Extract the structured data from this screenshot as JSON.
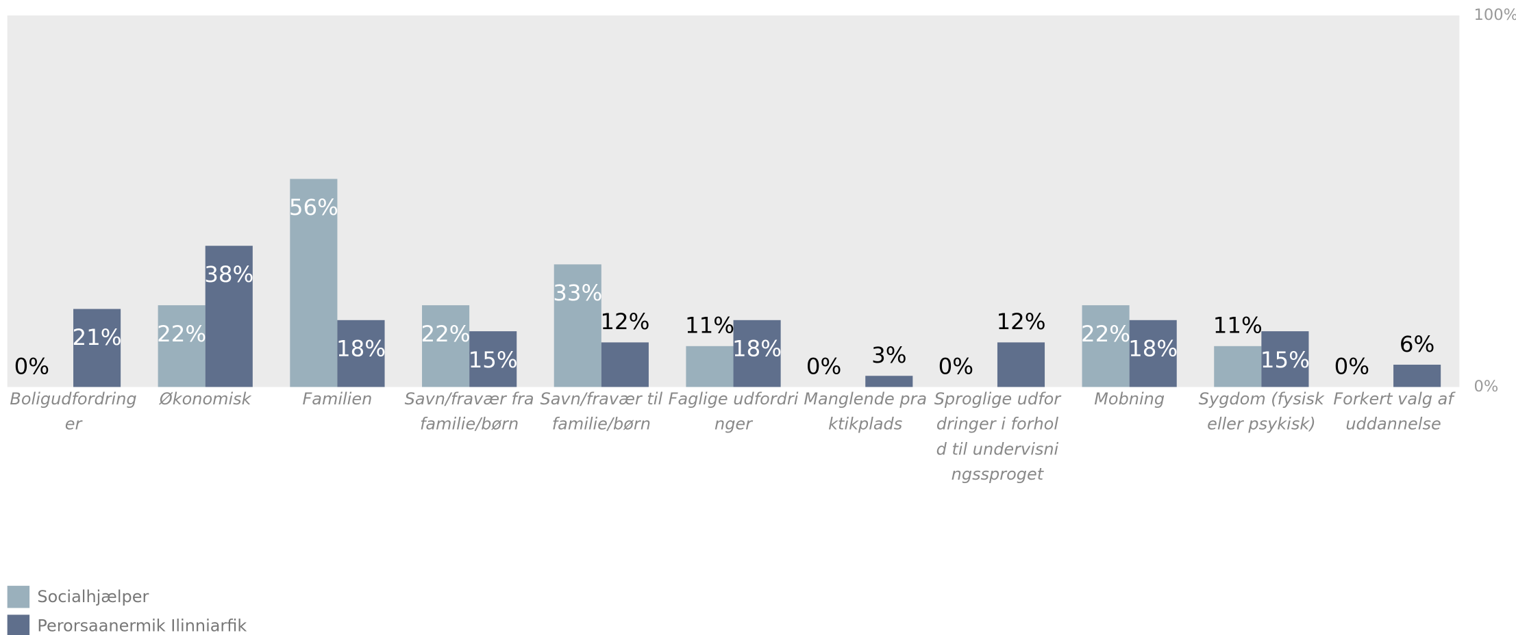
{
  "chart_data": {
    "type": "bar",
    "categories": [
      "Boligudfordringer",
      "Økonomisk",
      "Familien",
      "Savn/fravær fra familie/børn",
      "Savn/fravær til familie/børn",
      "Faglige udfordringer",
      "Manglende praktikplads",
      "Sproglige udfordringer i forhold til undervisningssproget",
      "Mobning",
      "Sygdom (fysisk eller psykisk)",
      "Forkert valg af uddannelse"
    ],
    "series": [
      {
        "name": "Socialhjælper",
        "color": "#9ab0bc",
        "values": [
          0,
          22,
          56,
          22,
          33,
          11,
          0,
          0,
          22,
          11,
          0
        ],
        "value_labels": [
          "0%",
          "22%",
          "56%",
          "22%",
          "33%",
          "11%",
          "0%",
          "0%",
          "22%",
          "11%",
          "0%"
        ]
      },
      {
        "name": "Perorsaanermik Ilinniarfik",
        "color": "#5f6f8c",
        "values": [
          21,
          38,
          18,
          15,
          12,
          18,
          3,
          12,
          18,
          15,
          6
        ],
        "value_labels": [
          "21%",
          "38%",
          "18%",
          "15%",
          "12%",
          "18%",
          "3%",
          "12%",
          "18%",
          "15%",
          "6%"
        ]
      }
    ],
    "ylim": [
      0,
      100
    ],
    "yticks": [
      {
        "value": 0,
        "label": "0%"
      },
      {
        "value": 100,
        "label": "100%"
      }
    ],
    "legend": "bottom-left"
  }
}
